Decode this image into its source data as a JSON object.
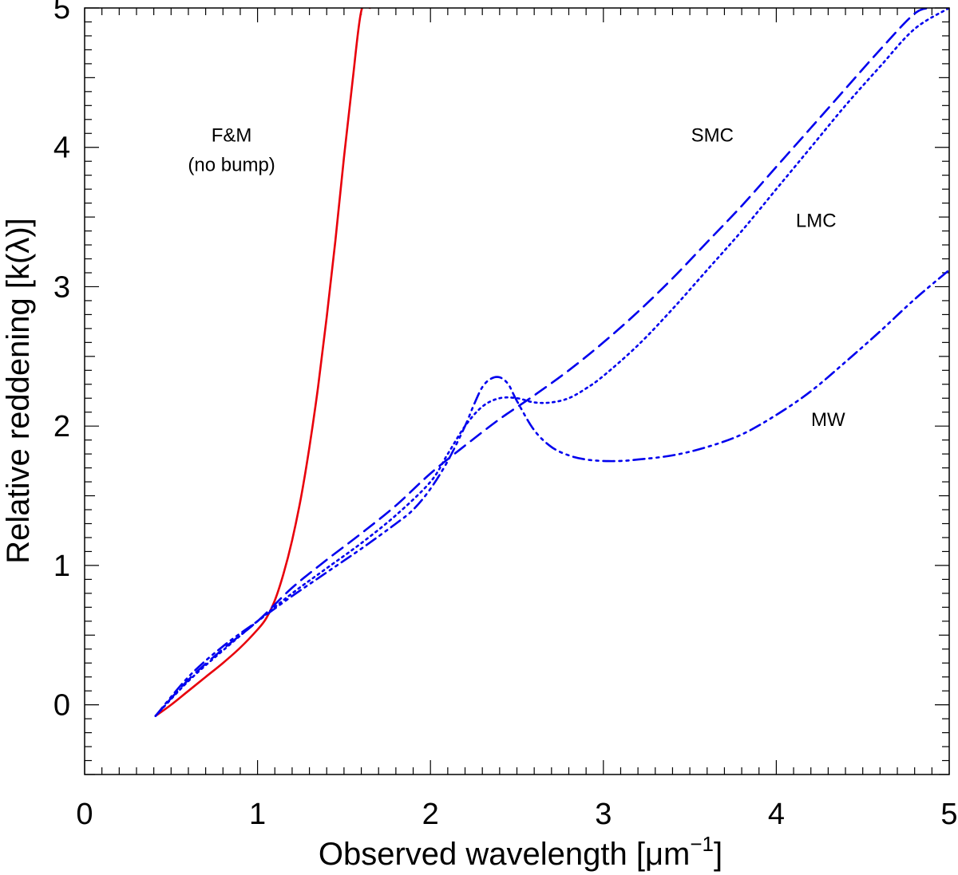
{
  "chart_data": {
    "type": "line",
    "xlabel": "Observed wavelength  [μm",
    "xlabel_sup": "−1",
    "xlabel_end": "]",
    "ylabel": "Relative reddening  [k(λ)]",
    "xlim": [
      0,
      5
    ],
    "ylim": [
      -0.5,
      5
    ],
    "xticks": [
      0,
      1,
      2,
      3,
      4,
      5
    ],
    "yticks": [
      0,
      1,
      2,
      3,
      4,
      5
    ],
    "xtick_labels": [
      "0",
      "1",
      "2",
      "3",
      "4",
      "5"
    ],
    "ytick_labels": [
      "0",
      "1",
      "2",
      "3",
      "4",
      "5"
    ],
    "x_minor_step": 0.1,
    "y_minor_step": 0.1,
    "grid": false,
    "legend": "none",
    "series": [
      {
        "name": "F&M",
        "color": "#e8000b",
        "style": "solid",
        "x": [
          0.41,
          0.5,
          0.6,
          0.7,
          0.8,
          0.9,
          1.0,
          1.05,
          1.1,
          1.15,
          1.2,
          1.25,
          1.3,
          1.35,
          1.4,
          1.45,
          1.5,
          1.55,
          1.6,
          1.65
        ],
        "y": [
          -0.08,
          0.0,
          0.1,
          0.2,
          0.3,
          0.41,
          0.54,
          0.62,
          0.75,
          0.94,
          1.18,
          1.48,
          1.85,
          2.28,
          2.78,
          3.33,
          3.93,
          4.48,
          4.98,
          5.0
        ]
      },
      {
        "name": "SMC",
        "color": "#0000ee",
        "style": "dashed",
        "x": [
          0.41,
          0.6,
          0.8,
          1.0,
          1.2,
          1.4,
          1.6,
          1.8,
          2.0,
          2.2,
          2.4,
          2.6,
          2.8,
          3.0,
          3.2,
          3.4,
          3.6,
          3.8,
          4.0,
          4.2,
          4.4,
          4.6,
          4.8,
          4.9
        ],
        "y": [
          -0.08,
          0.18,
          0.4,
          0.6,
          0.84,
          1.04,
          1.23,
          1.43,
          1.66,
          1.86,
          2.05,
          2.22,
          2.4,
          2.6,
          2.82,
          3.06,
          3.32,
          3.58,
          3.86,
          4.14,
          4.42,
          4.7,
          4.96,
          5.0
        ]
      },
      {
        "name": "LMC",
        "color": "#0000ee",
        "style": "dotted",
        "x": [
          0.41,
          0.6,
          0.8,
          1.0,
          1.2,
          1.4,
          1.6,
          1.8,
          2.0,
          2.1,
          2.2,
          2.3,
          2.4,
          2.5,
          2.6,
          2.7,
          2.8,
          2.9,
          3.0,
          3.2,
          3.4,
          3.6,
          3.8,
          4.0,
          4.2,
          4.4,
          4.6,
          4.8,
          5.0
        ],
        "y": [
          -0.08,
          0.17,
          0.39,
          0.6,
          0.8,
          0.98,
          1.16,
          1.36,
          1.6,
          1.8,
          2.0,
          2.14,
          2.2,
          2.2,
          2.17,
          2.17,
          2.2,
          2.27,
          2.36,
          2.58,
          2.84,
          3.12,
          3.4,
          3.7,
          4.0,
          4.3,
          4.58,
          4.85,
          5.0
        ]
      },
      {
        "name": "MW",
        "color": "#0000ee",
        "style": "dashdotdot",
        "x": [
          0.41,
          0.6,
          0.8,
          1.0,
          1.2,
          1.4,
          1.6,
          1.8,
          1.9,
          2.0,
          2.1,
          2.2,
          2.25,
          2.3,
          2.35,
          2.4,
          2.45,
          2.5,
          2.6,
          2.7,
          2.8,
          2.9,
          3.0,
          3.1,
          3.2,
          3.4,
          3.6,
          3.8,
          4.0,
          4.2,
          4.4,
          4.6,
          4.8,
          5.0
        ],
        "y": [
          -0.08,
          0.2,
          0.42,
          0.6,
          0.78,
          0.95,
          1.12,
          1.3,
          1.4,
          1.55,
          1.75,
          2.0,
          2.15,
          2.28,
          2.34,
          2.35,
          2.3,
          2.18,
          1.97,
          1.85,
          1.79,
          1.76,
          1.75,
          1.75,
          1.76,
          1.79,
          1.85,
          1.94,
          2.08,
          2.25,
          2.46,
          2.68,
          2.91,
          3.12
        ]
      }
    ],
    "annotations": [
      {
        "text": "F&M",
        "x": 0.85,
        "y": 4.04
      },
      {
        "text": "(no bump)",
        "x": 0.85,
        "y": 3.83
      },
      {
        "text": "SMC",
        "x": 3.63,
        "y": 4.04
      },
      {
        "text": "LMC",
        "x": 4.23,
        "y": 3.43
      },
      {
        "text": "MW",
        "x": 4.3,
        "y": 2.0
      }
    ]
  }
}
